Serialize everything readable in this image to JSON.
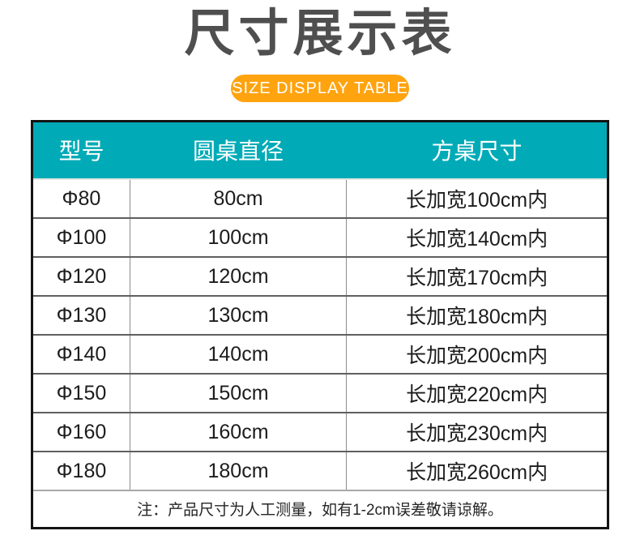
{
  "header": {
    "title": "尺寸展示表",
    "badge": "SIZE DISPLAY TABLE"
  },
  "table": {
    "columns": [
      "型号",
      "圆桌直径",
      "方桌尺寸"
    ],
    "rows": [
      [
        "Φ80",
        "80cm",
        "长加宽100cm内"
      ],
      [
        "Φ100",
        "100cm",
        "长加宽140cm内"
      ],
      [
        "Φ120",
        "120cm",
        "长加宽170cm内"
      ],
      [
        "Φ130",
        "130cm",
        "长加宽180cm内"
      ],
      [
        "Φ140",
        "140cm",
        "长加宽200cm内"
      ],
      [
        "Φ150",
        "150cm",
        "长加宽220cm内"
      ],
      [
        "Φ160",
        "160cm",
        "长加宽230cm内"
      ],
      [
        "Φ180",
        "180cm",
        "长加宽260cm内"
      ]
    ],
    "note": "注：产品尺寸为人工测量，如有1-2cm误差敬请谅解。"
  },
  "colors": {
    "teal": "#00abb7",
    "orange": "#ffa30f",
    "title_gray": "#4f4f4f"
  }
}
